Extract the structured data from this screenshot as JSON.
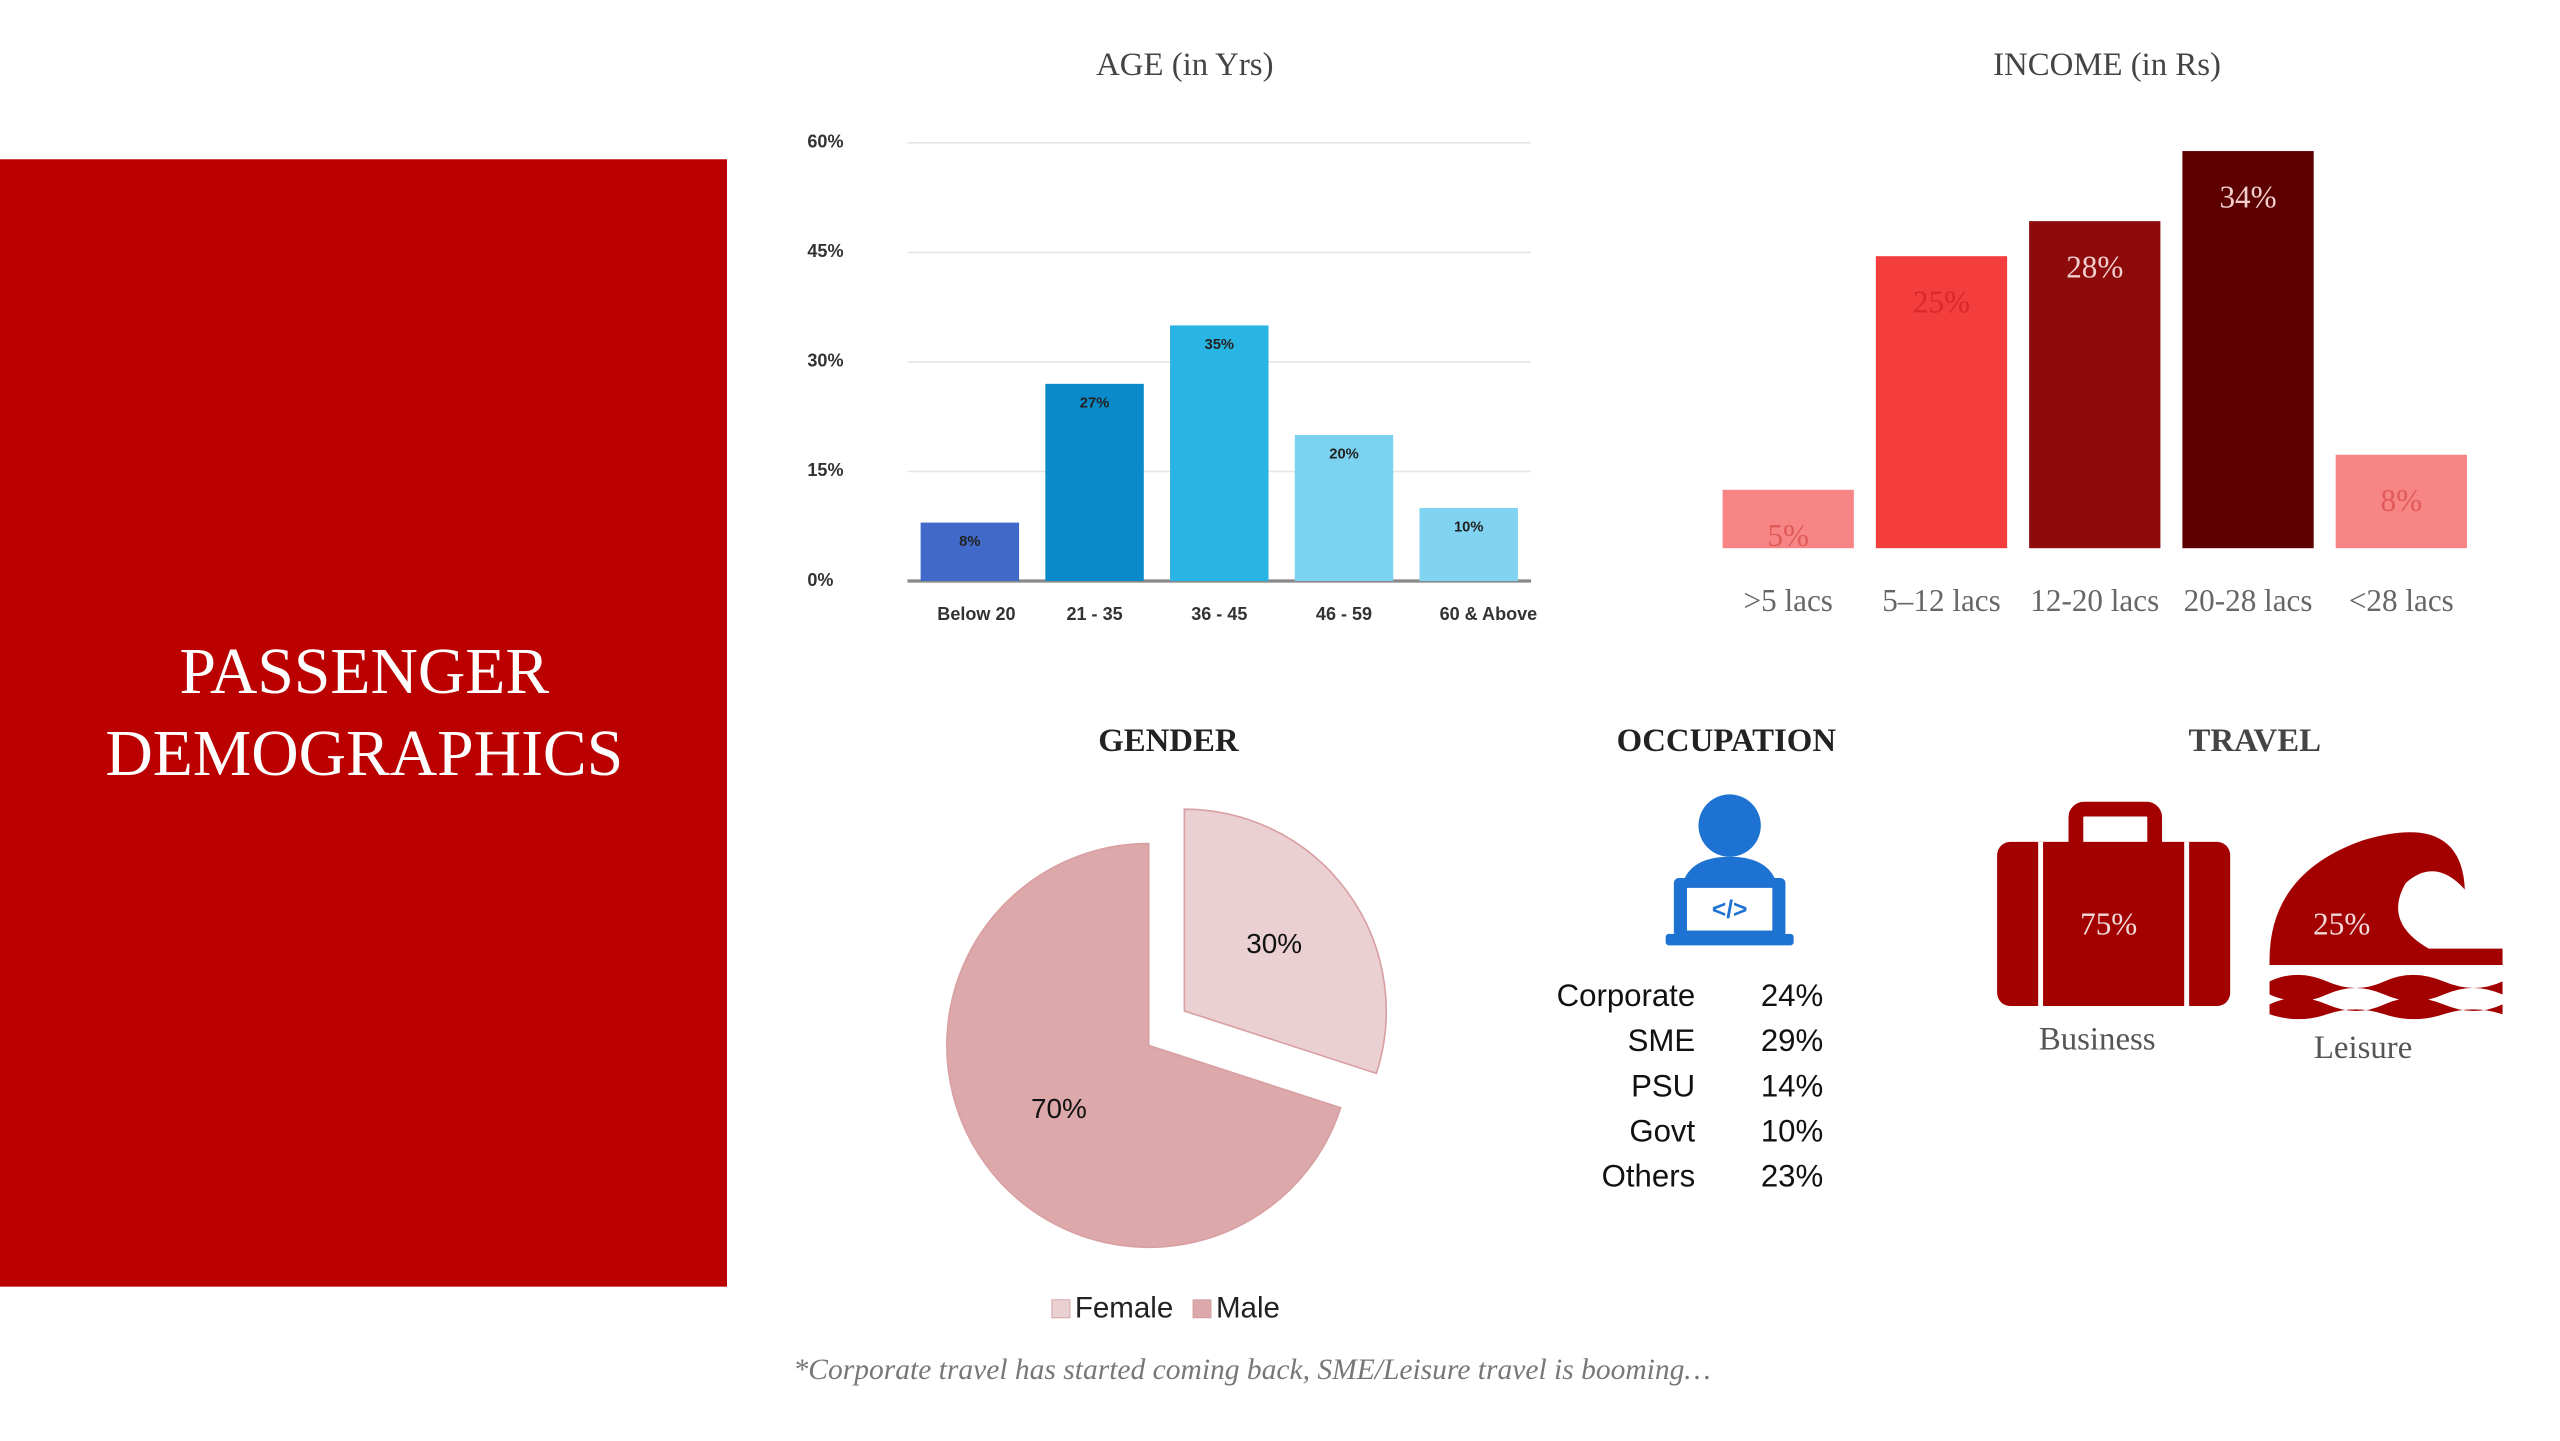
{
  "title": [
    "PASSENGER",
    "DEMOGRAPHICS"
  ],
  "chart_data": [
    {
      "type": "bar",
      "title": "AGE (in Yrs)",
      "categories": [
        "Below 20",
        "21 - 35",
        "36 - 45",
        "46 - 59",
        "60 & Above"
      ],
      "values": [
        8,
        27,
        35,
        20,
        10
      ],
      "value_labels": [
        "8%",
        "27%",
        "35%",
        "20%",
        "10%"
      ],
      "colors": [
        "#4169c9",
        "#0a8ac8",
        "#29b5e3",
        "#7ad2f0",
        "#80d4f1"
      ],
      "ylim": [
        0,
        60
      ],
      "yticks": [
        {
          "value": 0,
          "label": "0%"
        },
        {
          "value": 15,
          "label": "15%"
        },
        {
          "value": 30,
          "label": "30%"
        },
        {
          "value": 45,
          "label": "45%"
        },
        {
          "value": 60,
          "label": "60%"
        }
      ],
      "grid": true
    },
    {
      "type": "bar",
      "title": "INCOME (in Rs)",
      "categories": [
        ">5 lacs",
        "5–12 lacs",
        "12-20 lacs",
        "20-28 lacs",
        "<28 lacs"
      ],
      "values": [
        5,
        25,
        28,
        34,
        8
      ],
      "value_labels": [
        "5%",
        "25%",
        "28%",
        "34%",
        "8%"
      ],
      "colors": [
        "#f78585",
        "#f43e3e",
        "#8e0b0b",
        "#5c0000",
        "#f78585"
      ]
    },
    {
      "type": "pie",
      "title": "GENDER",
      "categories": [
        "Female",
        "Male"
      ],
      "values": [
        30,
        70
      ],
      "value_labels": [
        "30%",
        "70%"
      ],
      "colors": [
        "#ead0d2",
        "#dca8aa"
      ],
      "legend": "bottom"
    }
  ],
  "occupation": {
    "title": "OCCUPATION",
    "rows": [
      [
        "Corporate",
        "24%"
      ],
      [
        "SME",
        "29%"
      ],
      [
        "PSU",
        "14%"
      ],
      [
        "Govt",
        "10%"
      ],
      [
        "Others",
        "23%"
      ]
    ]
  },
  "travel": {
    "title": "TRAVEL",
    "items": [
      {
        "label": "Business",
        "value_label": "75%"
      },
      {
        "label": "Leisure",
        "value_label": "25%"
      }
    ]
  },
  "footnote": "*Corporate travel  has started coming back, SME/Leisure travel is booming…"
}
